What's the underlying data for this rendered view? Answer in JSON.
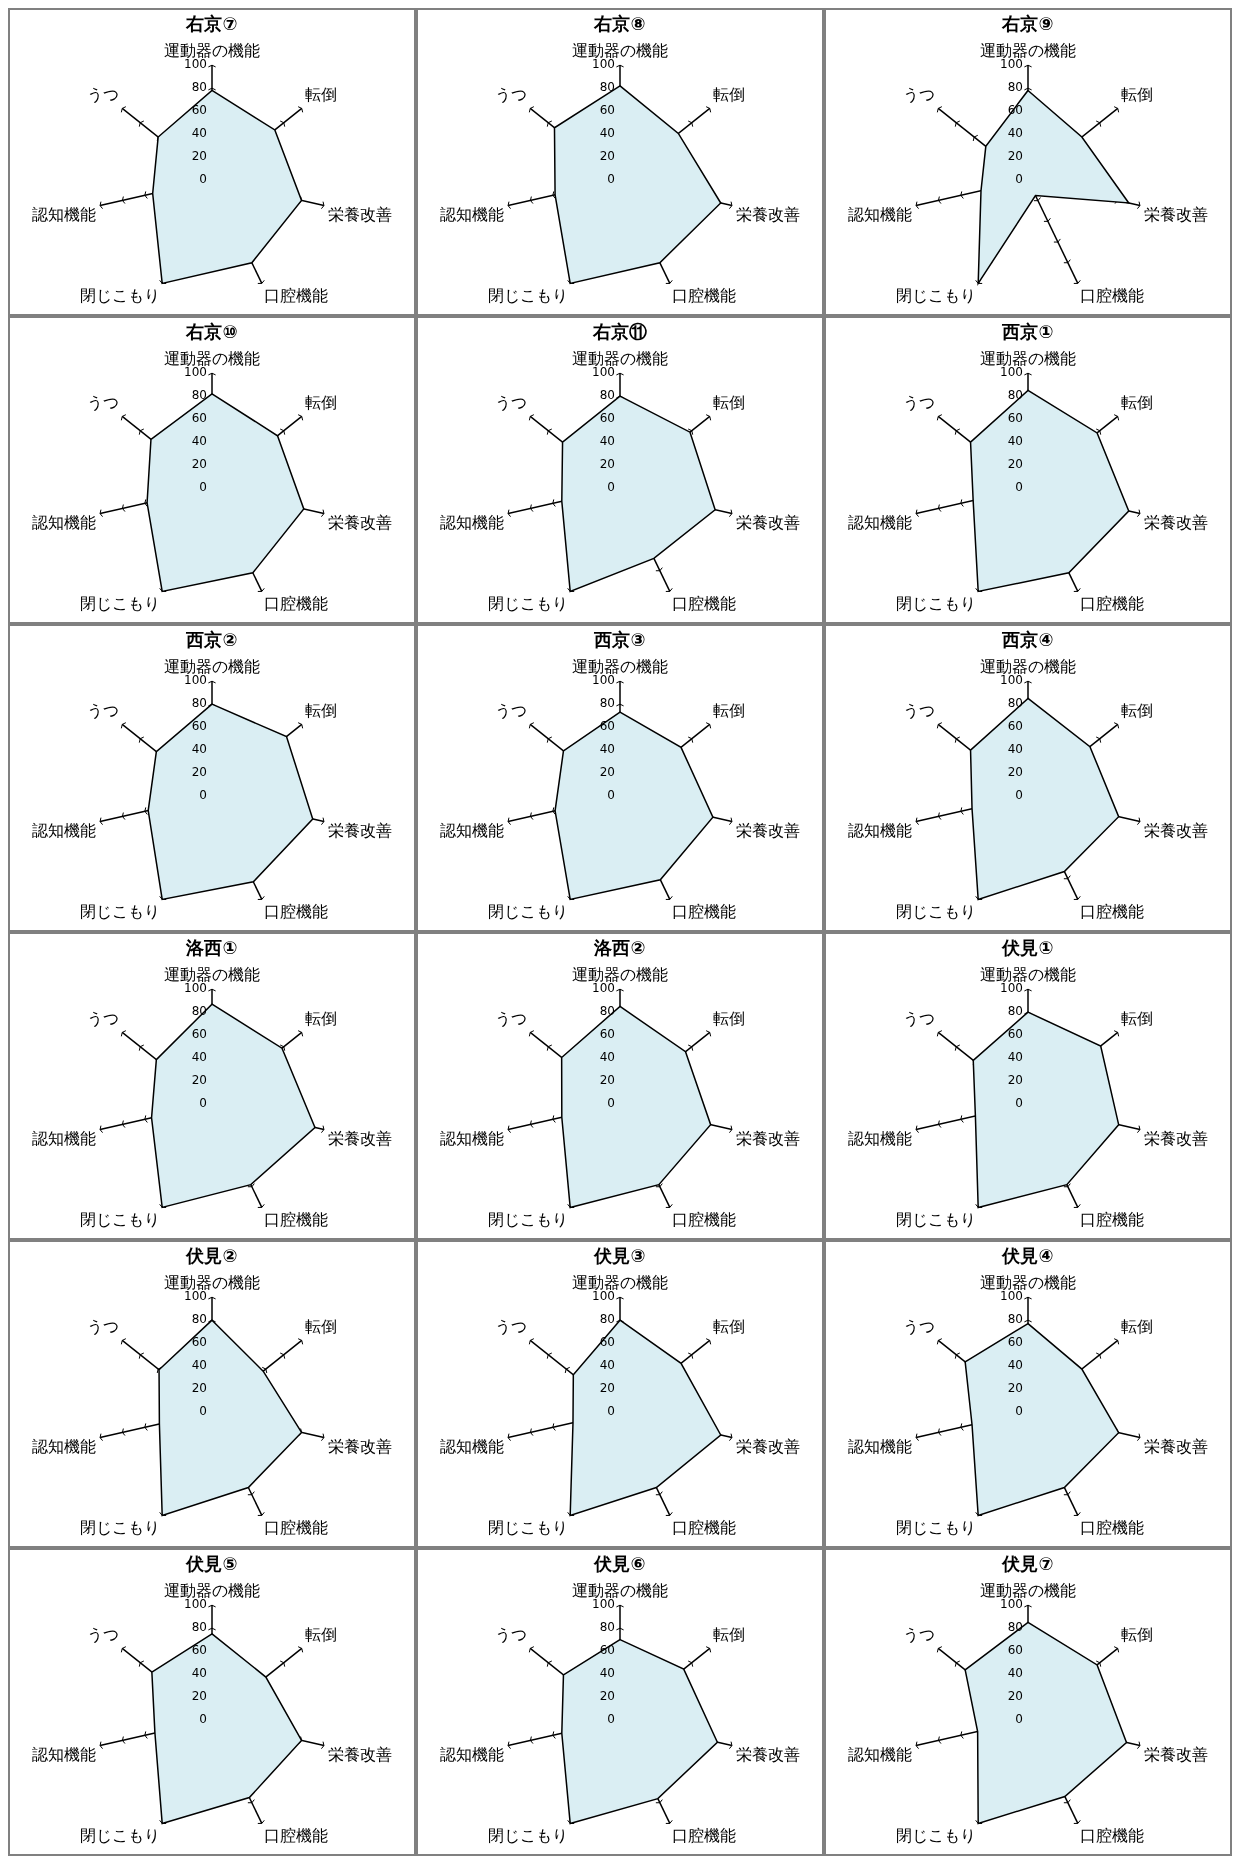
{
  "chart_data": [
    {
      "type": "radar",
      "title": "右京⑦",
      "categories": [
        "運動器の機能",
        "転倒",
        "栄養改善",
        "口腔機能",
        "閉じこもり",
        "認知機能",
        "うつ"
      ],
      "series": [
        {
          "color": "#daeef3",
          "values": [
            78,
            70,
            80,
            80,
            100,
            53,
            60
          ]
        }
      ],
      "ylim": [
        0,
        100
      ],
      "yticks": [
        0,
        20,
        40,
        60,
        80,
        100
      ]
    },
    {
      "type": "radar",
      "title": "右京⑧",
      "categories": [
        "運動器の機能",
        "転倒",
        "栄養改善",
        "口腔機能",
        "閉じこもり",
        "認知機能",
        "うつ"
      ],
      "series": [
        {
          "color": "#daeef3",
          "values": [
            82,
            65,
            90,
            80,
            100,
            58,
            73
          ]
        }
      ],
      "ylim": [
        0,
        100
      ],
      "yticks": [
        0,
        20,
        40,
        60,
        80,
        100
      ]
    },
    {
      "type": "radar",
      "title": "右京⑨",
      "categories": [
        "運動器の機能",
        "転倒",
        "栄養改善",
        "口腔機能",
        "閉じこもり",
        "認知機能",
        "うつ"
      ],
      "series": [
        {
          "color": "#daeef3",
          "values": [
            78,
            60,
            90,
            15,
            100,
            42,
            47
          ]
        }
      ],
      "ylim": [
        0,
        100
      ],
      "yticks": [
        0,
        20,
        40,
        60,
        80,
        100
      ]
    },
    {
      "type": "radar",
      "title": "右京⑩",
      "categories": [
        "運動器の機能",
        "転倒",
        "栄養改善",
        "口腔機能",
        "閉じこもり",
        "認知機能",
        "うつ"
      ],
      "series": [
        {
          "color": "#daeef3",
          "values": [
            82,
            73,
            82,
            82,
            100,
            58,
            68
          ]
        }
      ],
      "ylim": [
        0,
        100
      ],
      "yticks": [
        0,
        20,
        40,
        60,
        80,
        100
      ]
    },
    {
      "type": "radar",
      "title": "右京⑪",
      "categories": [
        "運動器の機能",
        "転倒",
        "栄養改善",
        "口腔機能",
        "閉じこもり",
        "認知機能",
        "うつ"
      ],
      "series": [
        {
          "color": "#daeef3",
          "values": [
            80,
            78,
            85,
            68,
            100,
            52,
            64
          ]
        }
      ],
      "ylim": [
        0,
        100
      ],
      "yticks": [
        0,
        20,
        40,
        60,
        80,
        100
      ]
    },
    {
      "type": "radar",
      "title": "西京①",
      "categories": [
        "運動器の機能",
        "転倒",
        "栄養改善",
        "口腔機能",
        "閉じこもり",
        "認知機能",
        "うつ"
      ],
      "series": [
        {
          "color": "#daeef3",
          "values": [
            85,
            77,
            90,
            82,
            100,
            49,
            64
          ]
        }
      ],
      "ylim": [
        0,
        100
      ],
      "yticks": [
        0,
        20,
        40,
        60,
        80,
        100
      ]
    },
    {
      "type": "radar",
      "title": "西京②",
      "categories": [
        "運動器の機能",
        "転倒",
        "栄養改善",
        "口腔機能",
        "閉じこもり",
        "認知機能",
        "うつ"
      ],
      "series": [
        {
          "color": "#daeef3",
          "values": [
            80,
            83,
            90,
            83,
            100,
            57,
            62
          ]
        }
      ],
      "ylim": [
        0,
        100
      ],
      "yticks": [
        0,
        20,
        40,
        60,
        80,
        100
      ]
    },
    {
      "type": "radar",
      "title": "西京③",
      "categories": [
        "運動器の機能",
        "転倒",
        "栄養改善",
        "口腔機能",
        "閉じこもり",
        "認知機能",
        "うつ"
      ],
      "series": [
        {
          "color": "#daeef3",
          "values": [
            73,
            68,
            83,
            81,
            100,
            58,
            63
          ]
        }
      ],
      "ylim": [
        0,
        100
      ],
      "yticks": [
        0,
        20,
        40,
        60,
        80,
        100
      ]
    },
    {
      "type": "radar",
      "title": "西京④",
      "categories": [
        "運動器の機能",
        "転倒",
        "栄養改善",
        "口腔機能",
        "閉じこもり",
        "認知機能",
        "うつ"
      ],
      "series": [
        {
          "color": "#daeef3",
          "values": [
            85,
            69,
            81,
            73,
            100,
            50,
            64
          ]
        }
      ],
      "ylim": [
        0,
        100
      ],
      "yticks": [
        0,
        20,
        40,
        60,
        80,
        100
      ]
    },
    {
      "type": "radar",
      "title": "洛西①",
      "categories": [
        "運動器の機能",
        "転倒",
        "栄養改善",
        "口腔機能",
        "閉じこもり",
        "認知機能",
        "うつ"
      ],
      "series": [
        {
          "color": "#daeef3",
          "values": [
            87,
            78,
            92,
            78,
            100,
            54,
            62
          ]
        }
      ],
      "ylim": [
        0,
        100
      ],
      "yticks": [
        0,
        20,
        40,
        60,
        80,
        100
      ]
    },
    {
      "type": "radar",
      "title": "洛西②",
      "categories": [
        "運動器の機能",
        "転倒",
        "栄養改善",
        "口腔機能",
        "閉じこもり",
        "認知機能",
        "うつ"
      ],
      "series": [
        {
          "color": "#daeef3",
          "values": [
            85,
            73,
            81,
            78,
            100,
            52,
            65
          ]
        }
      ],
      "ylim": [
        0,
        100
      ],
      "yticks": [
        0,
        20,
        40,
        60,
        80,
        100
      ]
    },
    {
      "type": "radar",
      "title": "伏見①",
      "categories": [
        "運動器の機能",
        "転倒",
        "栄養改善",
        "口腔機能",
        "閉じこもり",
        "認知機能",
        "うつ"
      ],
      "series": [
        {
          "color": "#daeef3",
          "values": [
            80,
            81,
            81,
            78,
            100,
            47,
            61
          ]
        }
      ],
      "ylim": [
        0,
        100
      ],
      "yticks": [
        0,
        20,
        40,
        60,
        80,
        100
      ]
    },
    {
      "type": "radar",
      "title": "伏見②",
      "categories": [
        "運動器の機能",
        "転倒",
        "栄養改善",
        "口腔機能",
        "閉じこもり",
        "認知機能",
        "うつ"
      ],
      "series": [
        {
          "color": "#daeef3",
          "values": [
            80,
            57,
            80,
            73,
            100,
            47,
            59
          ]
        }
      ],
      "ylim": [
        0,
        100
      ],
      "yticks": [
        0,
        20,
        40,
        60,
        80,
        100
      ]
    },
    {
      "type": "radar",
      "title": "伏見③",
      "categories": [
        "運動器の機能",
        "転倒",
        "栄養改善",
        "口腔機能",
        "閉じこもり",
        "認知機能",
        "うつ"
      ],
      "series": [
        {
          "color": "#daeef3",
          "values": [
            80,
            68,
            90,
            73,
            100,
            42,
            52
          ]
        }
      ],
      "ylim": [
        0,
        100
      ],
      "yticks": [
        0,
        20,
        40,
        60,
        80,
        100
      ]
    },
    {
      "type": "radar",
      "title": "伏見④",
      "categories": [
        "運動器の機能",
        "転倒",
        "栄養改善",
        "口腔機能",
        "閉じこもり",
        "認知機能",
        "うつ"
      ],
      "series": [
        {
          "color": "#daeef3",
          "values": [
            77,
            60,
            81,
            73,
            100,
            50,
            70
          ]
        }
      ],
      "ylim": [
        0,
        100
      ],
      "yticks": [
        0,
        20,
        40,
        60,
        80,
        100
      ]
    },
    {
      "type": "radar",
      "title": "伏見⑤",
      "categories": [
        "運動器の機能",
        "転倒",
        "栄養改善",
        "口腔機能",
        "閉じこもり",
        "認知機能",
        "うつ"
      ],
      "series": [
        {
          "color": "#daeef3",
          "values": [
            75,
            60,
            80,
            75,
            100,
            51,
            67
          ]
        }
      ],
      "ylim": [
        0,
        100
      ],
      "yticks": [
        0,
        20,
        40,
        60,
        80,
        100
      ]
    },
    {
      "type": "radar",
      "title": "伏見⑥",
      "categories": [
        "運動器の機能",
        "転倒",
        "栄養改善",
        "口腔機能",
        "閉じこもり",
        "認知機能",
        "うつ"
      ],
      "series": [
        {
          "color": "#daeef3",
          "values": [
            70,
            71,
            87,
            76,
            100,
            52,
            63
          ]
        }
      ],
      "ylim": [
        0,
        100
      ],
      "yticks": [
        0,
        20,
        40,
        60,
        80,
        100
      ]
    },
    {
      "type": "radar",
      "title": "伏見⑦",
      "categories": [
        "運動器の機能",
        "転倒",
        "栄養改善",
        "口腔機能",
        "閉じこもり",
        "認知機能",
        "うつ"
      ],
      "series": [
        {
          "color": "#daeef3",
          "values": [
            85,
            77,
            88,
            74,
            100,
            45,
            70
          ]
        }
      ],
      "ylim": [
        0,
        100
      ],
      "yticks": [
        0,
        20,
        40,
        60,
        80,
        100
      ]
    }
  ]
}
